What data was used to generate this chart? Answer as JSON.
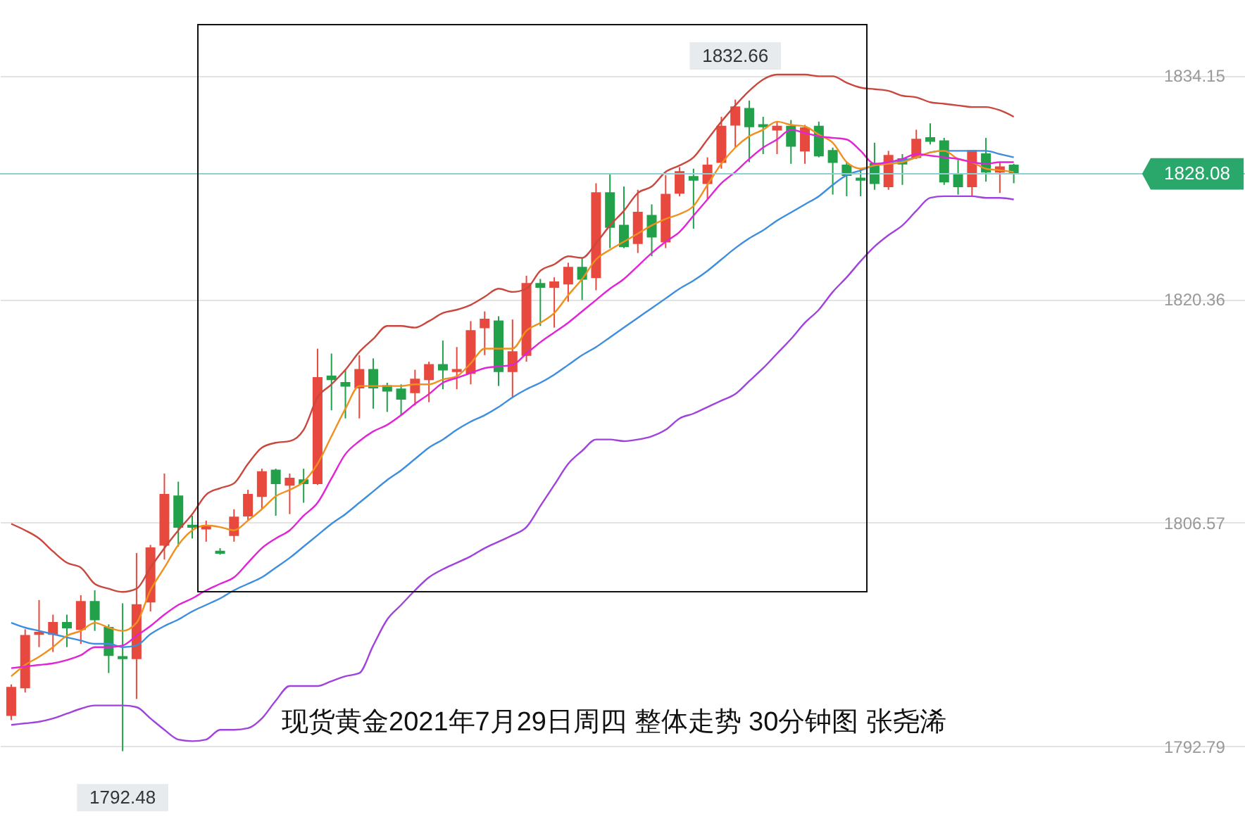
{
  "chart_data": {
    "type": "candlestick",
    "categories": [
      null,
      null,
      null,
      null,
      null,
      null,
      null,
      null,
      null,
      null,
      null,
      null,
      null,
      null,
      null,
      null,
      null,
      null,
      null,
      null,
      null,
      null,
      null,
      null,
      null,
      null,
      null,
      null,
      null,
      null,
      null,
      null,
      null,
      null,
      null,
      null,
      null,
      null,
      null,
      null,
      null,
      null,
      null,
      null,
      null,
      null,
      null,
      null,
      null,
      null,
      null,
      null,
      null,
      null,
      null,
      null,
      null,
      null,
      null,
      null,
      null,
      null,
      null,
      null,
      null,
      null,
      null,
      null,
      null,
      null,
      null,
      null,
      null
    ],
    "ohlc": [
      [
        1794.7,
        1796.6,
        1794.4,
        1796.4
      ],
      [
        1796.4,
        1800.0,
        1796.1,
        1799.6
      ],
      [
        1799.7,
        1801.8,
        1798.9,
        1799.8
      ],
      [
        1799.7,
        1800.9,
        1798.6,
        1800.4
      ],
      [
        1800.4,
        1800.9,
        1798.9,
        1800.1
      ],
      [
        1800.0,
        1802.1,
        1799.1,
        1801.7
      ],
      [
        1801.7,
        1802.4,
        1799.9,
        1800.6
      ],
      [
        1800.1,
        1800.3,
        1797.3,
        1798.4
      ],
      [
        1798.3,
        1801.6,
        1792.48,
        1798.2
      ],
      [
        1798.2,
        1804.7,
        1795.7,
        1801.5
      ],
      [
        1801.7,
        1805.2,
        1801.1,
        1805.0
      ],
      [
        1805.2,
        1809.6,
        1804.3,
        1808.3
      ],
      [
        1808.2,
        1809.1,
        1805.1,
        1806.3
      ],
      [
        1806.4,
        1807.0,
        1805.6,
        1806.3
      ],
      [
        1806.2,
        1806.7,
        1805.4,
        1806.3
      ],
      [
        1804.8,
        1805.0,
        1804.6,
        1804.7
      ],
      [
        1805.8,
        1807.4,
        1805.4,
        1806.9
      ],
      [
        1807.0,
        1808.6,
        1806.7,
        1808.3
      ],
      [
        1808.2,
        1809.9,
        1807.4,
        1809.7
      ],
      [
        1809.8,
        1809.9,
        1807.0,
        1809.0
      ],
      [
        1808.9,
        1809.6,
        1807.1,
        1809.3
      ],
      [
        1809.2,
        1809.9,
        1807.8,
        1809.0
      ],
      [
        1809.0,
        1817.3,
        1808.9,
        1815.5
      ],
      [
        1815.6,
        1817.0,
        1813.5,
        1815.4
      ],
      [
        1815.2,
        1816.0,
        1813.0,
        1815.0
      ],
      [
        1814.9,
        1816.9,
        1813.0,
        1816.0
      ],
      [
        1816.0,
        1816.7,
        1813.6,
        1814.9
      ],
      [
        1815.0,
        1815.2,
        1813.4,
        1814.7
      ],
      [
        1814.8,
        1815.1,
        1813.2,
        1814.2
      ],
      [
        1814.6,
        1816.0,
        1813.8,
        1815.4
      ],
      [
        1815.4,
        1816.5,
        1814.0,
        1816.3
      ],
      [
        1816.3,
        1817.8,
        1814.8,
        1816.0
      ],
      [
        1815.9,
        1817.4,
        1814.8,
        1816.0
      ],
      [
        1815.8,
        1819.0,
        1815.1,
        1818.4
      ],
      [
        1818.6,
        1819.6,
        1816.9,
        1819.1
      ],
      [
        1819.0,
        1819.3,
        1815.0,
        1815.9
      ],
      [
        1815.9,
        1819.1,
        1814.3,
        1817.1
      ],
      [
        1816.9,
        1821.8,
        1816.5,
        1821.3
      ],
      [
        1821.3,
        1821.6,
        1818.7,
        1821.1
      ],
      [
        1821.1,
        1821.7,
        1818.6,
        1821.4
      ],
      [
        1821.3,
        1822.6,
        1820.2,
        1822.3
      ],
      [
        1822.3,
        1822.9,
        1820.3,
        1821.6
      ],
      [
        1821.7,
        1827.5,
        1820.9,
        1826.9
      ],
      [
        1826.9,
        1828.1,
        1823.5,
        1824.8
      ],
      [
        1824.9,
        1827.3,
        1823.5,
        1823.6
      ],
      [
        1823.8,
        1827.1,
        1823.2,
        1825.7
      ],
      [
        1825.5,
        1826.2,
        1823.0,
        1824.2
      ],
      [
        1823.9,
        1828.0,
        1823.5,
        1826.8
      ],
      [
        1826.9,
        1828.5,
        1826.7,
        1828.2
      ],
      [
        1827.9,
        1828.4,
        1824.7,
        1827.7
      ],
      [
        1827.5,
        1829.1,
        1826.5,
        1828.6
      ],
      [
        1828.8,
        1831.6,
        1828.4,
        1831.0
      ],
      [
        1831.1,
        1832.66,
        1829.7,
        1832.2
      ],
      [
        1832.1,
        1832.6,
        1828.8,
        1831.0
      ],
      [
        1831.1,
        1831.6,
        1829.3,
        1831.0
      ],
      [
        1830.8,
        1831.3,
        1829.3,
        1831.0
      ],
      [
        1831.0,
        1831.4,
        1828.7,
        1829.8
      ],
      [
        1829.5,
        1831.1,
        1828.7,
        1830.9
      ],
      [
        1831.0,
        1831.3,
        1829.1,
        1829.2
      ],
      [
        1829.5,
        1829.7,
        1826.8,
        1828.8
      ],
      [
        1828.6,
        1828.8,
        1826.7,
        1828.0
      ],
      [
        1827.8,
        1828.4,
        1826.7,
        1827.7
      ],
      [
        1828.7,
        1830.0,
        1827.1,
        1827.5
      ],
      [
        1827.3,
        1829.5,
        1827.1,
        1829.2
      ],
      [
        1829.0,
        1829.3,
        1827.4,
        1828.7
      ],
      [
        1829.1,
        1830.8,
        1829.0,
        1830.2
      ],
      [
        1830.3,
        1831.2,
        1829.9,
        1830.1
      ],
      [
        1830.1,
        1830.3,
        1827.4,
        1827.6
      ],
      [
        1828.0,
        1829.0,
        1826.8,
        1827.3
      ],
      [
        1827.3,
        1829.5,
        1826.7,
        1829.5
      ],
      [
        1829.3,
        1830.3,
        1827.6,
        1828.2
      ],
      [
        1828.2,
        1828.8,
        1826.9,
        1828.5
      ],
      [
        1828.6,
        1828.7,
        1827.5,
        1828.08
      ]
    ],
    "series": [
      {
        "type": "line",
        "color": "#c9473d",
        "values": [
          1806.5,
          1806.1,
          1805.6,
          1804.8,
          1804.1,
          1803.8,
          1802.8,
          1802.5,
          1802.3,
          1802.5,
          1803.8,
          1805.0,
          1806.1,
          1807.1,
          1808.3,
          1808.7,
          1809.0,
          1810.2,
          1811.2,
          1811.5,
          1811.6,
          1812.3,
          1814.3,
          1815.1,
          1816.0,
          1817.1,
          1817.9,
          1818.7,
          1818.7,
          1818.6,
          1819.0,
          1819.5,
          1819.7,
          1820.0,
          1820.5,
          1821.0,
          1820.8,
          1821.0,
          1822.1,
          1822.5,
          1823.0,
          1822.9,
          1823.8,
          1824.9,
          1825.8,
          1826.9,
          1827.3,
          1828.2,
          1828.6,
          1829.1,
          1830.2,
          1831.3,
          1832.3,
          1833.2,
          1833.9,
          1834.2,
          1834.2,
          1834.2,
          1834.1,
          1834.1,
          1833.7,
          1833.4,
          1833.3,
          1833.2,
          1832.9,
          1832.8,
          1832.5,
          1832.4,
          1832.3,
          1832.2,
          1832.2,
          1832.0,
          1831.6
        ]
      },
      {
        "type": "line",
        "color": "#3d8ede",
        "values": [
          1800.4,
          1800.1,
          1799.9,
          1799.7,
          1799.5,
          1799.3,
          1799.1,
          1799.1,
          1798.9,
          1799.0,
          1799.7,
          1800.2,
          1800.6,
          1801.1,
          1801.5,
          1801.9,
          1802.4,
          1802.8,
          1803.2,
          1803.8,
          1804.4,
          1805.1,
          1805.8,
          1806.5,
          1807.1,
          1807.8,
          1808.5,
          1809.2,
          1809.8,
          1810.5,
          1811.2,
          1811.7,
          1812.3,
          1812.8,
          1813.2,
          1813.7,
          1814.3,
          1814.8,
          1815.2,
          1815.7,
          1816.3,
          1816.9,
          1817.4,
          1818.0,
          1818.6,
          1819.2,
          1819.8,
          1820.4,
          1821.0,
          1821.5,
          1822.1,
          1822.8,
          1823.5,
          1824.1,
          1824.6,
          1825.2,
          1825.7,
          1826.2,
          1826.7,
          1827.4,
          1828.0,
          1828.3,
          1828.6,
          1828.8,
          1828.9,
          1829.1,
          1829.4,
          1829.5,
          1829.5,
          1829.5,
          1829.5,
          1829.3,
          1829.1
        ]
      },
      {
        "type": "line",
        "color": "#a043dc",
        "values": [
          1794.1,
          1794.2,
          1794.3,
          1794.5,
          1794.8,
          1795.1,
          1795.3,
          1795.3,
          1795.3,
          1795.2,
          1794.5,
          1793.8,
          1793.2,
          1793.1,
          1793.2,
          1793.8,
          1793.8,
          1793.9,
          1794.5,
          1795.6,
          1796.5,
          1796.5,
          1796.5,
          1796.8,
          1797.1,
          1797.3,
          1799.0,
          1800.6,
          1801.5,
          1802.4,
          1803.2,
          1803.7,
          1804.1,
          1804.5,
          1805.0,
          1805.4,
          1805.8,
          1806.3,
          1807.6,
          1808.9,
          1810.2,
          1811.0,
          1811.7,
          1811.7,
          1811.6,
          1811.7,
          1811.9,
          1812.3,
          1813.0,
          1813.3,
          1813.7,
          1814.1,
          1814.5,
          1815.3,
          1816.1,
          1817.0,
          1817.9,
          1818.9,
          1819.7,
          1820.8,
          1821.7,
          1822.7,
          1823.6,
          1824.3,
          1824.9,
          1825.8,
          1826.6,
          1826.7,
          1826.7,
          1826.7,
          1826.6,
          1826.6,
          1826.5
        ]
      },
      {
        "type": "line",
        "color": "#f0901e",
        "values": [
          1797.1,
          1797.8,
          1798.3,
          1798.9,
          1799.6,
          1799.9,
          1800.4,
          1800.1,
          1799.9,
          1800.4,
          1802.4,
          1803.8,
          1805.2,
          1806.1,
          1806.4,
          1806.3,
          1806.1,
          1806.7,
          1807.4,
          1808.2,
          1808.6,
          1809.1,
          1810.2,
          1811.9,
          1813.6,
          1815.0,
          1815.0,
          1815.0,
          1815.0,
          1815.1,
          1815.1,
          1815.4,
          1815.6,
          1816.4,
          1817.3,
          1817.3,
          1817.3,
          1818.4,
          1818.9,
          1819.5,
          1820.6,
          1821.6,
          1822.8,
          1823.4,
          1823.9,
          1824.4,
          1824.9,
          1825.3,
          1825.6,
          1826.1,
          1827.4,
          1828.7,
          1829.7,
          1830.4,
          1830.8,
          1831.3,
          1831.1,
          1831.0,
          1830.5,
          1830.0,
          1828.8,
          1828.4,
          1828.6,
          1828.7,
          1828.8,
          1829.1,
          1829.4,
          1829.5,
          1829.0,
          1828.8,
          1828.4,
          1828.3,
          1828.2
        ]
      },
      {
        "type": "line",
        "color": "#e124d6",
        "values": [
          1797.6,
          1797.7,
          1797.8,
          1797.9,
          1798.1,
          1798.4,
          1798.9,
          1798.9,
          1799.0,
          1799.6,
          1800.2,
          1800.9,
          1801.5,
          1801.9,
          1802.4,
          1802.8,
          1803.2,
          1804.1,
          1805.0,
          1805.6,
          1806.1,
          1807.0,
          1807.8,
          1809.3,
          1810.8,
          1811.6,
          1812.2,
          1812.6,
          1813.2,
          1813.9,
          1814.5,
          1815.2,
          1815.5,
          1815.8,
          1816.1,
          1816.2,
          1816.3,
          1817.0,
          1817.7,
          1818.3,
          1818.9,
          1819.6,
          1820.3,
          1821.0,
          1821.6,
          1822.4,
          1823.2,
          1823.9,
          1824.5,
          1825.5,
          1826.5,
          1827.5,
          1828.2,
          1829.0,
          1829.7,
          1830.2,
          1830.8,
          1830.6,
          1830.4,
          1830.3,
          1830.2,
          1829.5,
          1828.7,
          1828.8,
          1829.0,
          1829.3,
          1829.2,
          1829.1,
          1829.0,
          1828.8,
          1828.7,
          1828.8,
          1828.8
        ]
      }
    ],
    "ylim": [
      1788.3,
      1838.8
    ],
    "yticks": [
      1792.79,
      1806.57,
      1820.36,
      1834.15
    ],
    "grid": "y",
    "tick_labels": "y",
    "ref_lines": [
      {
        "axis": "y",
        "value": 1828.08,
        "label": "1828.08",
        "color": "#8fcfd2"
      }
    ],
    "annotations": [
      {
        "text": "1832.66",
        "y": 1832.66
      },
      {
        "text": "1792.48",
        "y": 1792.48
      },
      "现货黄金2021年7月29日周四  整体走势 30分钟图  张尧浠"
    ]
  }
}
